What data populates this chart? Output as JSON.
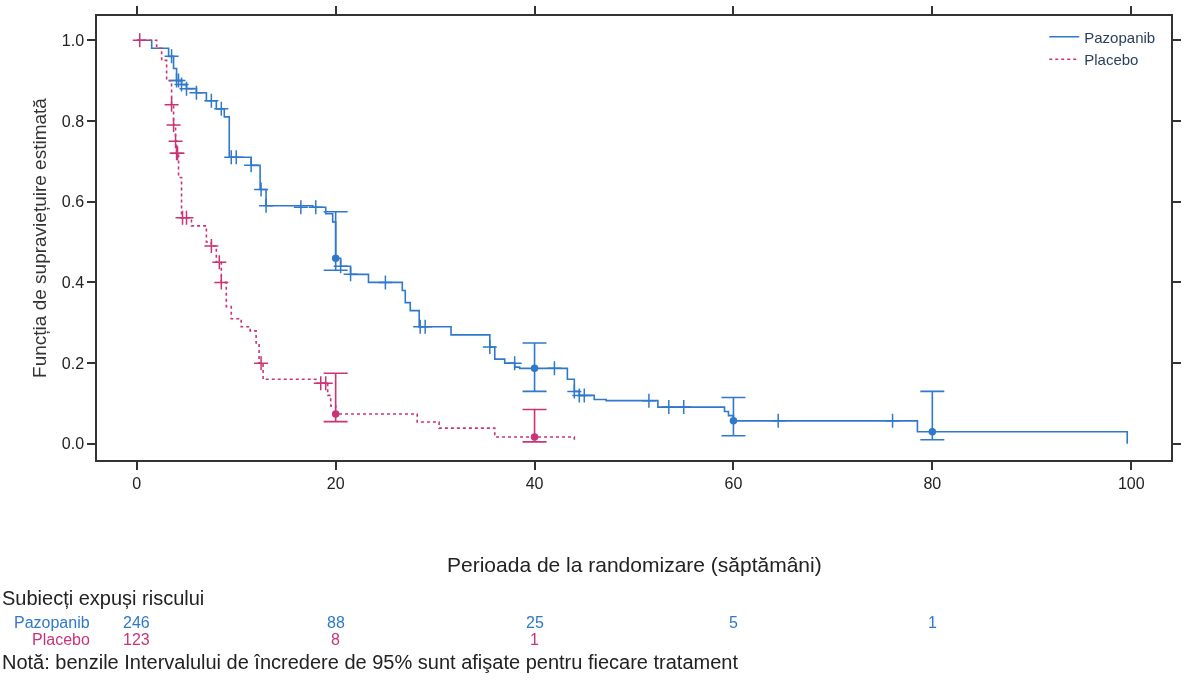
{
  "chart_data": {
    "type": "step",
    "ylabel": "Funcția de supraviețuire estimată",
    "xlabel": "Perioada de la randomizare (săptămâni)",
    "xlim": [
      -4,
      104
    ],
    "xticks": [
      0,
      20,
      40,
      60,
      80,
      100
    ],
    "ylim": [
      -0.04,
      1.06
    ],
    "yticks": [
      {
        "value": 0,
        "label": "0.0"
      },
      {
        "value": 0.2,
        "label": "0.2"
      },
      {
        "value": 0.4,
        "label": "0.4"
      },
      {
        "value": 0.6,
        "label": "0.6"
      },
      {
        "value": 0.8,
        "label": "0.8"
      },
      {
        "value": 1,
        "label": "1.0"
      }
    ],
    "legend": "top right",
    "series": [
      {
        "name": "Pazopanib",
        "color": "#2f78cc",
        "line_style": "solid",
        "x": [
          0,
          1.5,
          3.2,
          3.7,
          4,
          4.5,
          5,
          6,
          7,
          8,
          8.8,
          9.3,
          11.5,
          12.4,
          13,
          17.7,
          19,
          19.7,
          20,
          20.5,
          21.5,
          23.3,
          26.7,
          27,
          27.5,
          28.4,
          31.6,
          35.5,
          36,
          37,
          38,
          38.5,
          43.3,
          44,
          44.5,
          46,
          47.2,
          52.4,
          59.1,
          59.5,
          60,
          78.5,
          99.6
        ],
        "values": [
          1,
          0.98,
          0.96,
          0.93,
          0.9,
          0.89,
          0.88,
          0.87,
          0.85,
          0.83,
          0.81,
          0.71,
          0.69,
          0.63,
          0.59,
          0.586,
          0.57,
          0.55,
          0.46,
          0.44,
          0.42,
          0.4,
          0.38,
          0.35,
          0.33,
          0.29,
          0.27,
          0.24,
          0.21,
          0.2,
          0.19,
          0.187,
          0.16,
          0.13,
          0.12,
          0.11,
          0.107,
          0.091,
          0.08,
          0.07,
          0.057,
          0.03,
          0.0
        ]
      },
      {
        "name": "Placebo",
        "color": "#cc3377",
        "line_style": "dotted",
        "x": [
          0,
          2,
          2.5,
          3,
          3.5,
          3.7,
          3.9,
          4,
          4.2,
          4.5,
          5.5,
          7,
          7.5,
          8,
          8.5,
          9,
          9.5,
          10.5,
          11.4,
          12,
          12.3,
          12.7,
          18,
          19.2,
          19.5,
          20,
          28.2,
          30.4,
          36,
          44
        ],
        "values": [
          1,
          0.98,
          0.95,
          0.9,
          0.84,
          0.79,
          0.75,
          0.72,
          0.66,
          0.56,
          0.54,
          0.5,
          0.49,
          0.45,
          0.4,
          0.34,
          0.31,
          0.29,
          0.28,
          0.25,
          0.2,
          0.16,
          0.15,
          0.12,
          0.094,
          0.074,
          0.054,
          0.039,
          0.017,
          0.01
        ]
      },
      {
        "type": "scatter",
        "marker": "cross",
        "color": "#2f78cc",
        "x": [
          3.5,
          4,
          4.2,
          4.5,
          5,
          6,
          7.5,
          8.5,
          9.5,
          10,
          11.5,
          12.5,
          13,
          16.5,
          18,
          20.5,
          21.5,
          25,
          28.5,
          29,
          35.5,
          38,
          42,
          44,
          44.5,
          45,
          51.5,
          53.5,
          55,
          64.5,
          76
        ],
        "values": [
          0.96,
          0.9,
          0.9,
          0.89,
          0.88,
          0.87,
          0.85,
          0.83,
          0.71,
          0.71,
          0.69,
          0.63,
          0.59,
          0.586,
          0.586,
          0.44,
          0.42,
          0.4,
          0.29,
          0.29,
          0.24,
          0.2,
          0.187,
          0.13,
          0.12,
          0.12,
          0.107,
          0.091,
          0.091,
          0.057,
          0.057
        ]
      },
      {
        "type": "scatter",
        "marker": "cross",
        "color": "#cc3377",
        "x": [
          0.3,
          3.5,
          3.7,
          3.9,
          4,
          4.1,
          4.6,
          5,
          7.5,
          8.3,
          8.5,
          12.5,
          18.5,
          19
        ],
        "values": [
          1.0,
          0.84,
          0.79,
          0.75,
          0.72,
          0.72,
          0.56,
          0.56,
          0.49,
          0.45,
          0.4,
          0.2,
          0.15,
          0.15
        ]
      },
      {
        "type": "scatter",
        "marker": "circle",
        "color": "#2f78cc",
        "x": [
          20,
          40,
          60,
          80
        ],
        "values": [
          0.46,
          0.187,
          0.057,
          0.03
        ],
        "errors": [
          [
            0.43,
            0.575
          ],
          [
            0.13,
            0.25
          ],
          [
            0.02,
            0.115
          ],
          [
            0.01,
            0.13
          ]
        ]
      },
      {
        "type": "scatter",
        "marker": "circle",
        "color": "#cc3377",
        "x": [
          20,
          40
        ],
        "values": [
          0.074,
          0.017
        ],
        "errors": [
          [
            0.055,
            0.175
          ],
          [
            0.005,
            0.085
          ]
        ]
      }
    ],
    "annotations": [
      "Subiecți expuși riscului",
      "Pazopanib",
      "246",
      "88",
      "25",
      "5",
      "1",
      "Placebo",
      "123",
      "8",
      "1",
      "Notă: benzile Intervalului de încredere de 95% sunt afişate pentru fiecare tratament"
    ]
  }
}
